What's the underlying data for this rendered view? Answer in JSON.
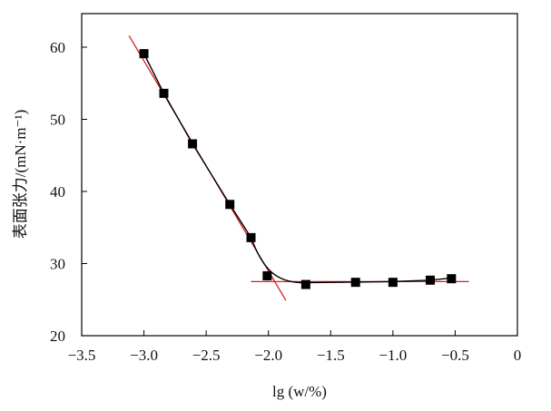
{
  "chart_data": {
    "type": "scatter",
    "xlabel": "lg (w/%)",
    "ylabel": "表面张力/(mN·m⁻¹)",
    "xlim": [
      -3.5,
      0
    ],
    "ylim": [
      20,
      65
    ],
    "xticks": [
      -3.5,
      -3.0,
      -2.5,
      -2.0,
      -1.5,
      -1.0,
      -0.5,
      0
    ],
    "xtick_labels": [
      "−3.5",
      "−3.0",
      "−2.5",
      "−2.0",
      "−1.5",
      "−1.0",
      "−0.5",
      "0"
    ],
    "yticks": [
      20,
      30,
      40,
      50,
      60
    ],
    "ytick_labels": [
      "20",
      "30",
      "40",
      "50",
      "60"
    ],
    "grid": false,
    "series": [
      {
        "marker": "square",
        "color": "#000000",
        "x": [
          -3.0,
          -2.84,
          -2.61,
          -2.31,
          -2.14,
          -2.01,
          -1.7,
          -1.3,
          -1.0,
          -0.7,
          -0.53
        ],
        "y": [
          59.1,
          53.6,
          46.6,
          38.2,
          33.6,
          28.3,
          27.1,
          27.4,
          27.4,
          27.7,
          27.9
        ]
      }
    ],
    "fit_lines": [
      {
        "color": "#d62020",
        "x": [
          -3.12,
          -1.86
        ],
        "y": [
          61.6,
          24.9
        ]
      },
      {
        "color": "#d62020",
        "x": [
          -2.14,
          -0.39
        ],
        "y": [
          27.5,
          27.5
        ]
      }
    ],
    "smooth_curve_color": "#000000"
  }
}
